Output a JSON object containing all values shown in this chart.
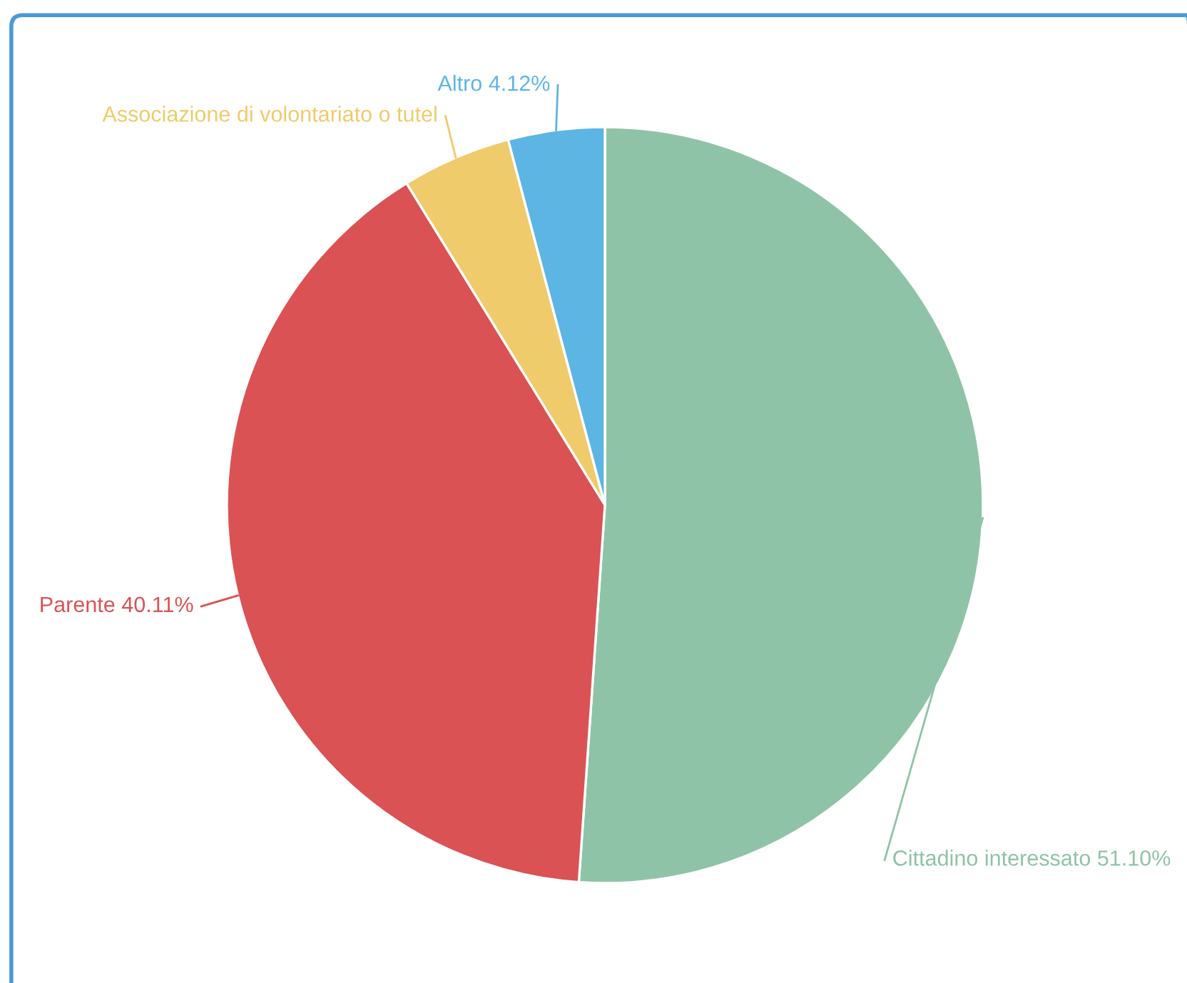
{
  "chart_data": {
    "type": "pie",
    "categories": [
      "Cittadino interessato",
      "Parente",
      "Associazione di volontariato o tutel",
      "Altro"
    ],
    "values": [
      51.1,
      40.11,
      4.67,
      4.12
    ],
    "colors": [
      "#8fc3a7",
      "#db5254",
      "#efcb6b",
      "#5db5e4"
    ],
    "value_labels": [
      "51.10%",
      "40.11%",
      null,
      "4.12%"
    ],
    "legend": false
  }
}
